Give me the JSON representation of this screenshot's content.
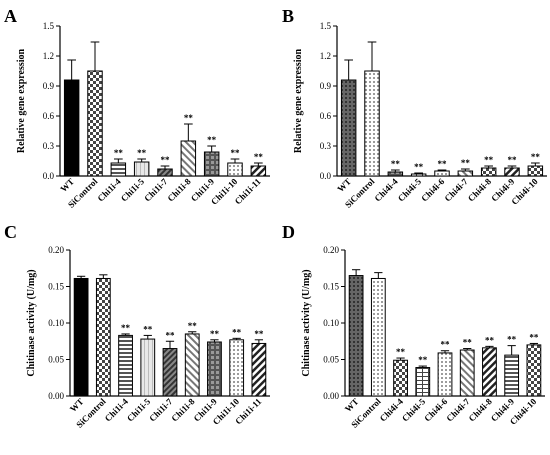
{
  "chart_data": [
    {
      "type": "bar",
      "panel": "A",
      "title": "",
      "ylabel": "Relative gene expression",
      "ylim": [
        0,
        1.5
      ],
      "yticks": [
        "0.0",
        "0.3",
        "0.6",
        "0.9",
        "1.2",
        "1.5"
      ],
      "categories": [
        "WT",
        "SiControl",
        "Chi1i-4",
        "Chi1i-5",
        "Chi1i-7",
        "Chi1i-8",
        "Chi1i-9",
        "Chi1i-10",
        "Chi1i-11"
      ],
      "values": [
        0.96,
        1.05,
        0.13,
        0.14,
        0.07,
        0.35,
        0.24,
        0.13,
        0.1
      ],
      "errors": [
        0.2,
        0.29,
        0.04,
        0.03,
        0.03,
        0.17,
        0.06,
        0.04,
        0.03
      ],
      "annotations": [
        "",
        "",
        "**",
        "**",
        "**",
        "**",
        "**",
        "**",
        "**"
      ],
      "patterns": [
        "black",
        "checker",
        "hlines",
        "light",
        "diag-dark",
        "diag-light",
        "grid",
        "dots",
        "diag-stripes"
      ]
    },
    {
      "type": "bar",
      "panel": "B",
      "title": "",
      "ylabel": "Relative gene expression",
      "ylim": [
        0,
        1.5
      ],
      "yticks": [
        "0.0",
        "0.3",
        "0.6",
        "0.9",
        "1.2",
        "1.5"
      ],
      "categories": [
        "WT",
        "SiControl",
        "Chi4i-4",
        "Chi4i-5",
        "Chi4i-6",
        "Chi4i-7",
        "Chi4i-8",
        "Chi4i-9",
        "Chi4i-10"
      ],
      "values": [
        0.96,
        1.05,
        0.04,
        0.02,
        0.05,
        0.05,
        0.08,
        0.08,
        0.1
      ],
      "errors": [
        0.2,
        0.29,
        0.02,
        0.01,
        0.01,
        0.02,
        0.02,
        0.02,
        0.03
      ],
      "annotations": [
        "",
        "",
        "**",
        "**",
        "**",
        "**",
        "**",
        "**",
        "**"
      ],
      "patterns": [
        "vgrid",
        "dots",
        "grid",
        "bricks",
        "dots",
        "diag-light",
        "checker",
        "diag-stripes",
        "checker"
      ]
    },
    {
      "type": "bar",
      "panel": "C",
      "title": "",
      "ylabel": "Chitinase activity (U/mg)",
      "ylim": [
        0,
        0.2
      ],
      "yticks": [
        "0.00",
        "0.05",
        "0.10",
        "0.15",
        "0.20"
      ],
      "categories": [
        "WT",
        "SiControl",
        "Chi1i-4",
        "Chi1i-5",
        "Chi1i-7",
        "Chi1i-8",
        "Chi1i-9",
        "Chi1i-10",
        "Chi1i-11"
      ],
      "values": [
        0.161,
        0.161,
        0.083,
        0.078,
        0.065,
        0.085,
        0.074,
        0.077,
        0.072
      ],
      "errors": [
        0.003,
        0.005,
        0.002,
        0.005,
        0.01,
        0.003,
        0.003,
        0.002,
        0.005
      ],
      "annotations": [
        "",
        "",
        "**",
        "**",
        "**",
        "**",
        "**",
        "**",
        "**"
      ],
      "patterns": [
        "black",
        "checker",
        "hlines",
        "light",
        "diag-dark",
        "diag-light",
        "grid",
        "dots",
        "diag-stripes"
      ]
    },
    {
      "type": "bar",
      "panel": "D",
      "title": "",
      "ylabel": "Chitinase activity (U/mg)",
      "ylim": [
        0,
        0.2
      ],
      "yticks": [
        "0.00",
        "0.05",
        "0.10",
        "0.15",
        "0.20"
      ],
      "categories": [
        "WT",
        "SiControl",
        "Chi4i-4",
        "Chi4i-5",
        "Chi4i-6",
        "Chi4i-7",
        "Chi4i-8",
        "Chi4i-9",
        "Chi4i-10"
      ],
      "values": [
        0.165,
        0.161,
        0.049,
        0.039,
        0.059,
        0.063,
        0.066,
        0.056,
        0.07
      ],
      "errors": [
        0.008,
        0.008,
        0.003,
        0.002,
        0.003,
        0.002,
        0.002,
        0.013,
        0.002
      ],
      "annotations": [
        "",
        "",
        "**",
        "**",
        "**",
        "**",
        "**",
        "**",
        "**"
      ],
      "patterns": [
        "vgrid",
        "dots",
        "checker",
        "bricks",
        "dots",
        "diag-light",
        "diag-stripes",
        "hlines",
        "checker"
      ]
    }
  ]
}
